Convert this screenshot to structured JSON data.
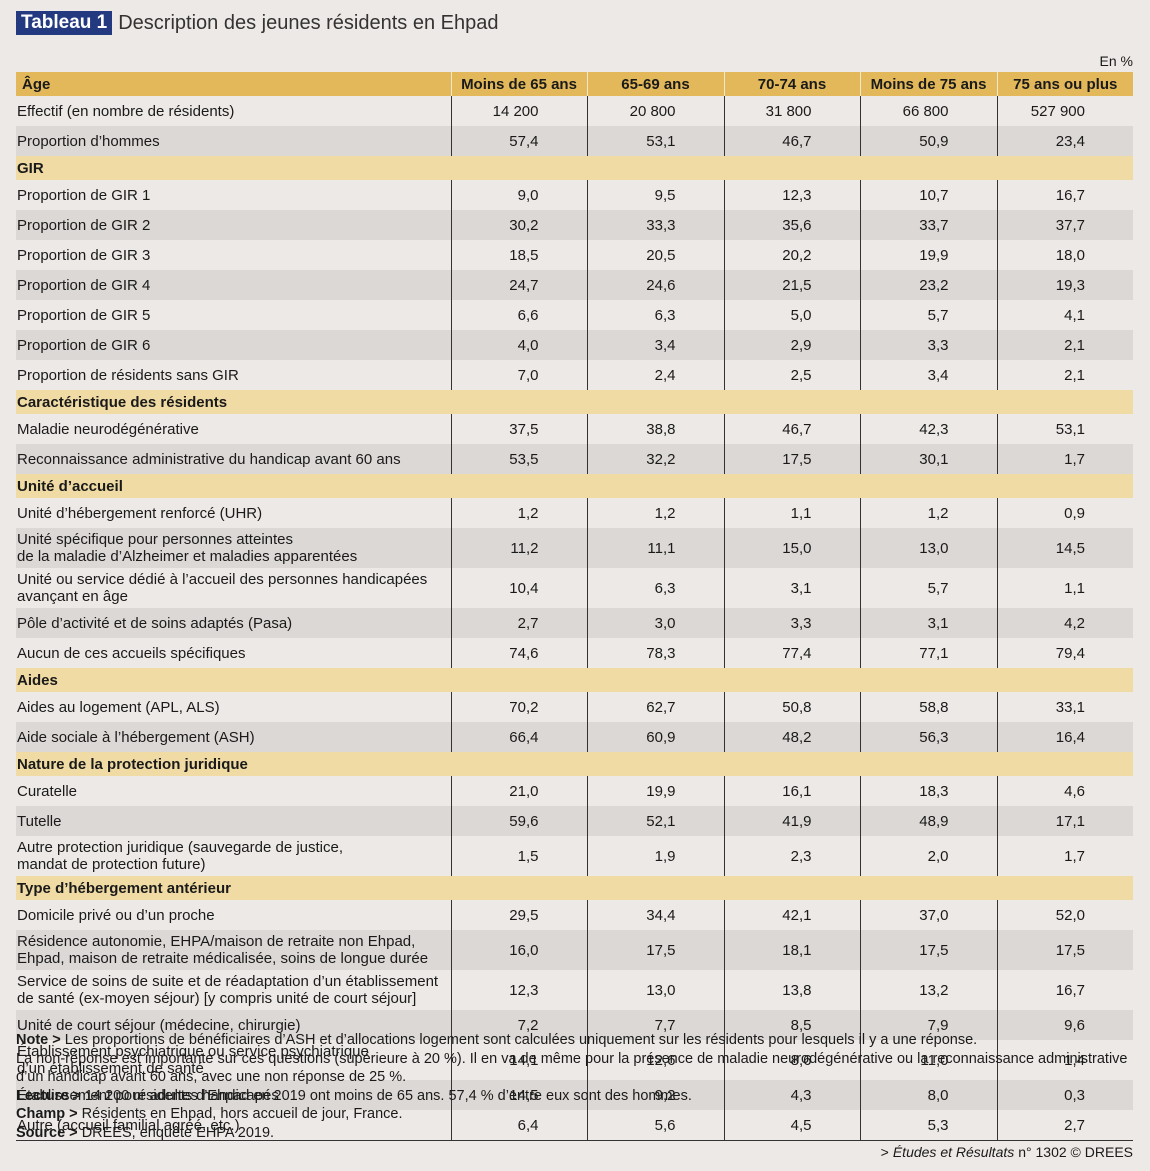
{
  "header": {
    "label": "Tableau 1",
    "title": "Description des jeunes résidents en Ehpad",
    "unit": "En %"
  },
  "table": {
    "columns": [
      "Âge",
      "Moins de 65 ans",
      "65-69 ans",
      "70-74 ans",
      "Moins de 75 ans",
      "75 ans ou plus"
    ],
    "rows": [
      {
        "label": "Effectif (en nombre de résidents)",
        "cells": [
          "14 200",
          "20 800",
          "31 800",
          "66 800",
          "527 900"
        ]
      },
      {
        "label": "Proportion d’hommes",
        "cells": [
          "57,4",
          "53,1",
          "46,7",
          "50,9",
          "23,4"
        ]
      },
      {
        "section": "GIR"
      },
      {
        "label": "Proportion de GIR 1",
        "cells": [
          "9,0",
          "9,5",
          "12,3",
          "10,7",
          "16,7"
        ]
      },
      {
        "label": "Proportion de GIR 2",
        "cells": [
          "30,2",
          "33,3",
          "35,6",
          "33,7",
          "37,7"
        ]
      },
      {
        "label": "Proportion de GIR 3",
        "cells": [
          "18,5",
          "20,5",
          "20,2",
          "19,9",
          "18,0"
        ]
      },
      {
        "label": "Proportion de GIR 4",
        "cells": [
          "24,7",
          "24,6",
          "21,5",
          "23,2",
          "19,3"
        ]
      },
      {
        "label": "Proportion de GIR 5",
        "cells": [
          "6,6",
          "6,3",
          "5,0",
          "5,7",
          "4,1"
        ]
      },
      {
        "label": "Proportion de GIR 6",
        "cells": [
          "4,0",
          "3,4",
          "2,9",
          "3,3",
          "2,1"
        ]
      },
      {
        "label": "Proportion de résidents sans GIR",
        "cells": [
          "7,0",
          "2,4",
          "2,5",
          "3,4",
          "2,1"
        ]
      },
      {
        "section": "Caractéristique des résidents"
      },
      {
        "label": "Maladie neurodégénérative",
        "cells": [
          "37,5",
          "38,8",
          "46,7",
          "42,3",
          "53,1"
        ]
      },
      {
        "label": "Reconnaissance administrative du handicap avant 60 ans",
        "cells": [
          "53,5",
          "32,2",
          "17,5",
          "30,1",
          "1,7"
        ]
      },
      {
        "section": "Unité d’accueil"
      },
      {
        "label": "Unité d’hébergement renforcé (UHR)",
        "cells": [
          "1,2",
          "1,2",
          "1,1",
          "1,2",
          "0,9"
        ]
      },
      {
        "label": "Unité spécifique pour personnes atteintes\nde la maladie d’Alzheimer et maladies apparentées",
        "cells": [
          "11,2",
          "11,1",
          "15,0",
          "13,0",
          "14,5"
        ]
      },
      {
        "label": "Unité ou service dédié à l’accueil des personnes handicapées\navançant en âge",
        "cells": [
          "10,4",
          "6,3",
          "3,1",
          "5,7",
          "1,1"
        ]
      },
      {
        "label": "Pôle d’activité et de soins adaptés (Pasa)",
        "cells": [
          "2,7",
          "3,0",
          "3,3",
          "3,1",
          "4,2"
        ]
      },
      {
        "label": "Aucun de ces accueils spécifiques",
        "cells": [
          "74,6",
          "78,3",
          "77,4",
          "77,1",
          "79,4"
        ]
      },
      {
        "section": "Aides"
      },
      {
        "label": "Aides au logement (APL, ALS)",
        "cells": [
          "70,2",
          "62,7",
          "50,8",
          "58,8",
          "33,1"
        ]
      },
      {
        "label": "Aide sociale à l’hébergement (ASH)",
        "cells": [
          "66,4",
          "60,9",
          "48,2",
          "56,3",
          "16,4"
        ]
      },
      {
        "section": "Nature de la protection juridique"
      },
      {
        "label": "Curatelle",
        "cells": [
          "21,0",
          "19,9",
          "16,1",
          "18,3",
          "4,6"
        ]
      },
      {
        "label": "Tutelle",
        "cells": [
          "59,6",
          "52,1",
          "41,9",
          "48,9",
          "17,1"
        ]
      },
      {
        "label": "Autre protection juridique (sauvegarde de justice,\nmandat de protection future)",
        "cells": [
          "1,5",
          "1,9",
          "2,3",
          "2,0",
          "1,7"
        ]
      },
      {
        "section": "Type d’hébergement antérieur"
      },
      {
        "label": "Domicile privé ou d’un proche",
        "cells": [
          "29,5",
          "34,4",
          "42,1",
          "37,0",
          "52,0"
        ]
      },
      {
        "label": "Résidence autonomie, EHPA/maison de retraite non Ehpad,\nEhpad, maison de retraite médicalisée, soins de longue durée",
        "cells": [
          "16,0",
          "17,5",
          "18,1",
          "17,5",
          "17,5"
        ]
      },
      {
        "label": "Service de soins de suite et de réadaptation d’un établissement\nde santé (ex-moyen séjour) [y compris unité de court séjour]",
        "cells": [
          "12,3",
          "13,0",
          "13,8",
          "13,2",
          "16,7"
        ]
      },
      {
        "label": "Unité de court séjour (médecine, chirurgie)",
        "cells": [
          "7,2",
          "7,7",
          "8,5",
          "7,9",
          "9,6"
        ]
      },
      {
        "label": "Établissement psychiatrique ou service psychiatrique\nd’un établissement de santé",
        "cells": [
          "14,1",
          "12,6",
          "8,6",
          "11,0",
          "1,4"
        ]
      },
      {
        "label": "Établissement pour adultes handicapés",
        "cells": [
          "14,5",
          "9,2",
          "4,3",
          "8,0",
          "0,3"
        ]
      },
      {
        "label": "Autre (accueil familial agréé, etc.)",
        "cells": [
          "6,4",
          "5,6",
          "4,5",
          "5,3",
          "2,7"
        ]
      }
    ]
  },
  "notes": [
    {
      "lead": "Note >",
      "text": "Les proportions de bénéficiaires d’ASH et d’allocations logement sont calculées uniquement sur les résidents pour lesquels il y a une réponse.\nLa non-réponse est importante sur ces questions (supérieure à 20 %). Il en va de même pour la présence de maladie neurodégénérative ou la reconnaissance administrative d’un handicap avant 60 ans, avec une non réponse de 25 %."
    },
    {
      "lead": "Lecture >",
      "text": "14 200 résidents d’Ehpad en 2019 ont moins de 65 ans. 57,4 % d’entre eux sont des hommes."
    },
    {
      "lead": "Champ >",
      "text": "Résidents en Ehpad, hors accueil de jour, France."
    },
    {
      "lead": "Source >",
      "text": "DREES, enquête EHPA 2019."
    }
  ],
  "source_ref": {
    "prefix": ">",
    "publication": "Études et Résultats",
    "suffix": "n° 1302 © DREES"
  }
}
